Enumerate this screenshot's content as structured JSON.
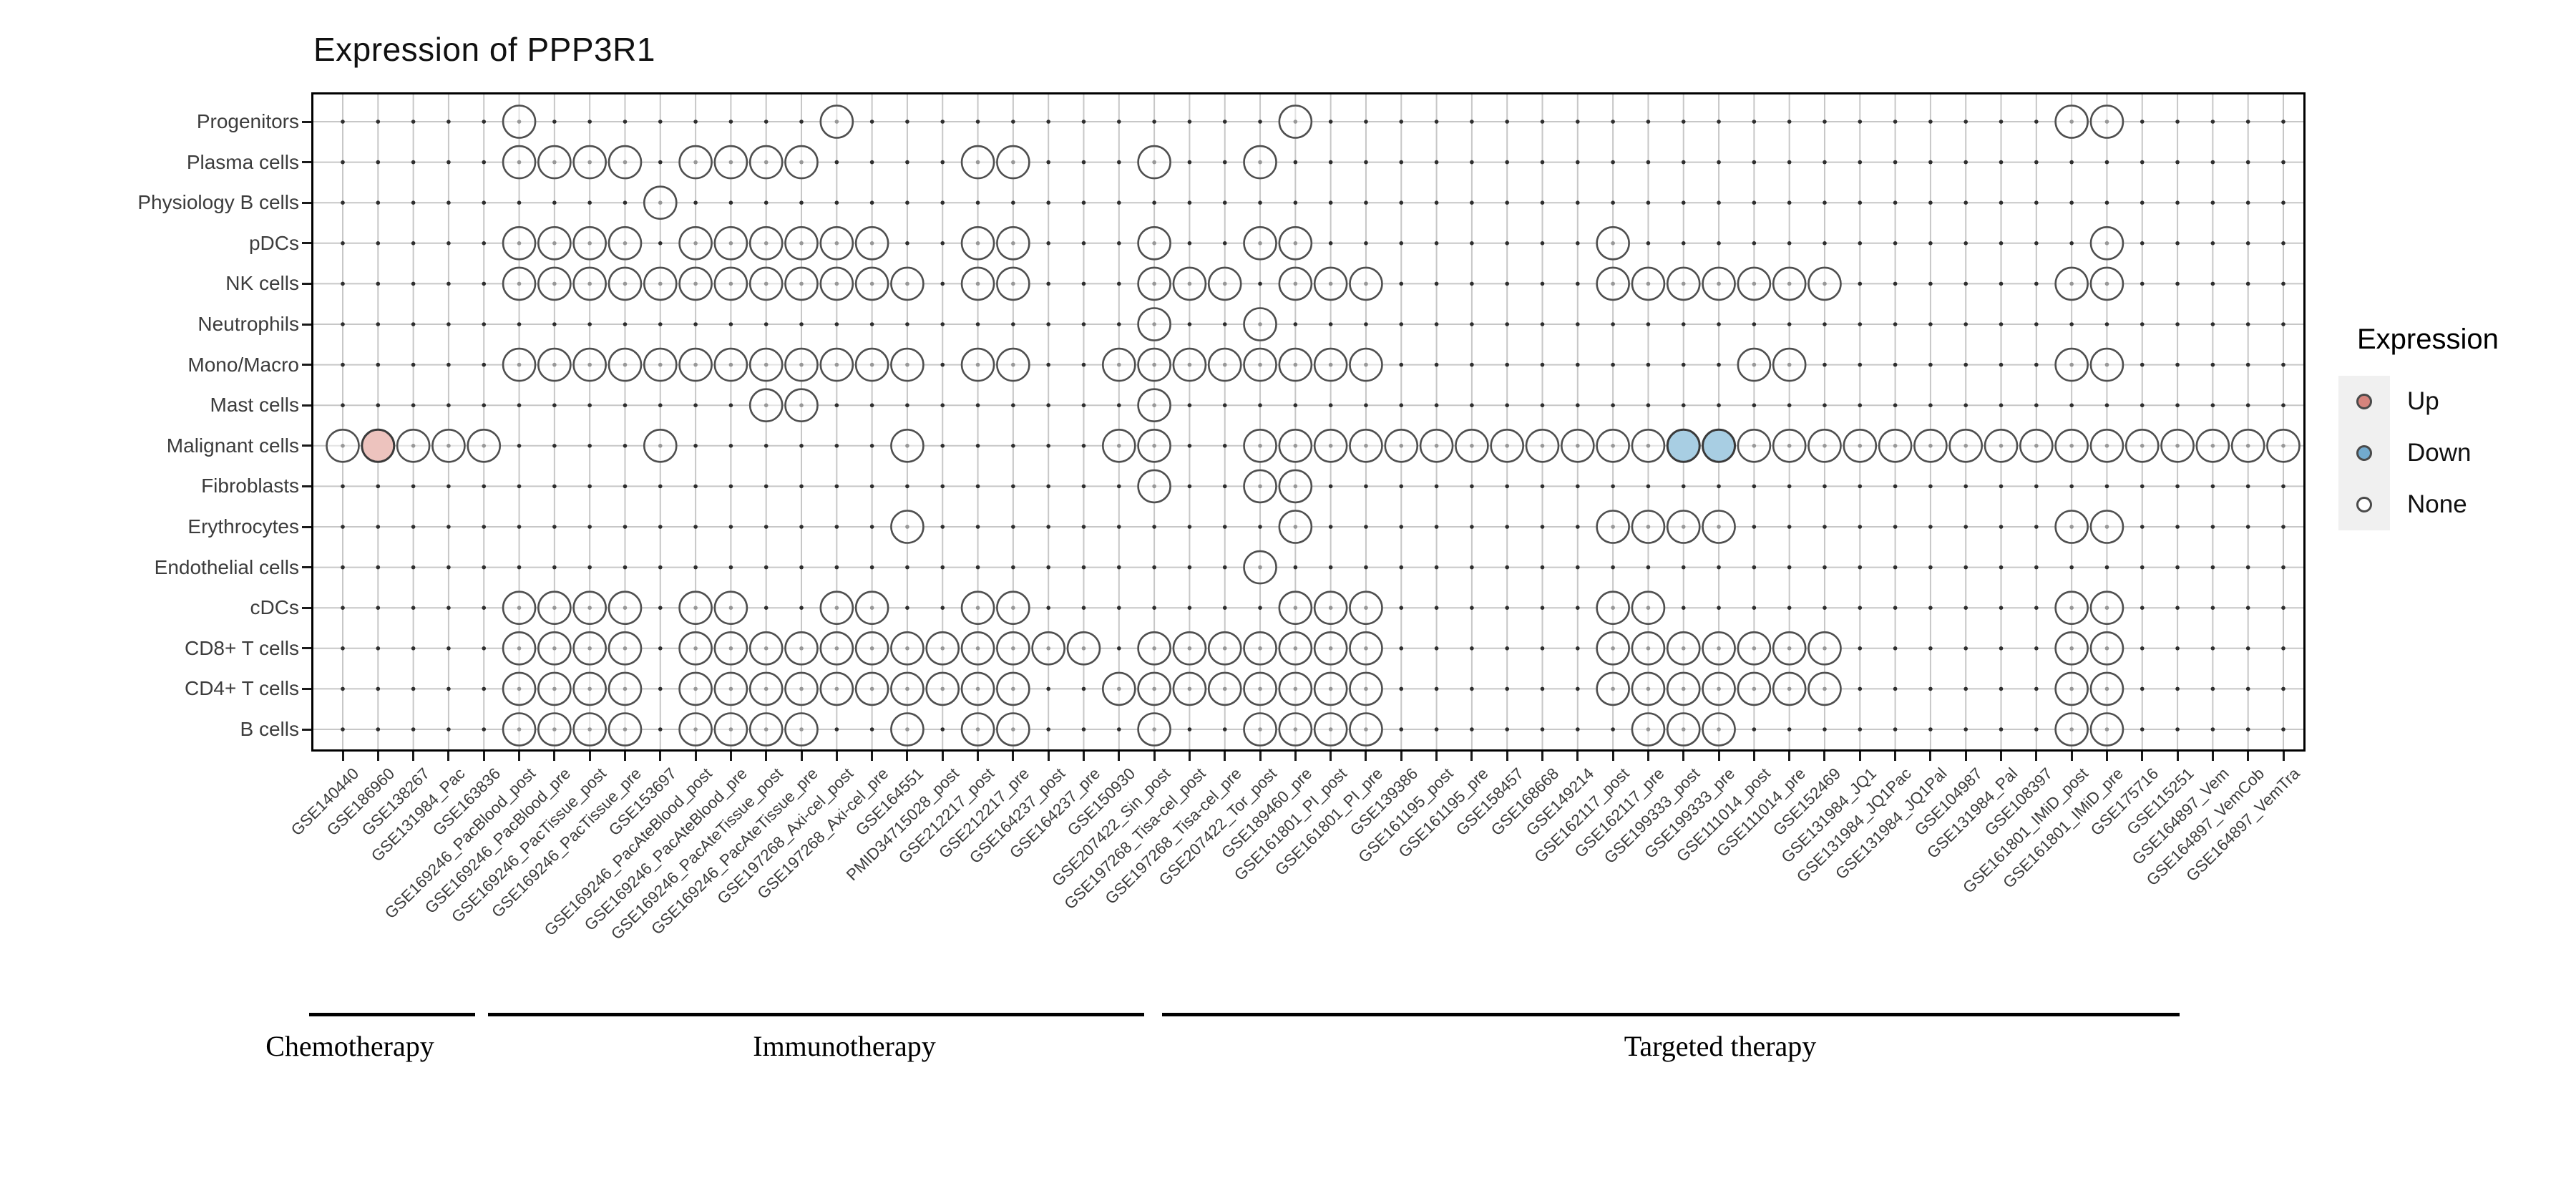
{
  "chart_data": {
    "type": "scatter",
    "title": "Expression of PPP3R1",
    "legend": {
      "title": "Expression",
      "items": [
        {
          "label": "Up",
          "color": "#D6847D"
        },
        {
          "label": "Down",
          "color": "#72AACE"
        },
        {
          "label": "None",
          "color": "#FFFFFF"
        }
      ]
    },
    "groups": [
      {
        "label": "Chemotherapy",
        "col_start": 1,
        "col_end": 5
      },
      {
        "label": "Immunotherapy",
        "col_start": 6,
        "col_end": 23
      },
      {
        "label": "Targeted therapy",
        "col_start": 24,
        "col_end": 52
      }
    ],
    "y_rows": [
      "Progenitors",
      "Plasma cells",
      "Physiology B cells",
      "pDCs",
      "NK cells",
      "Neutrophils",
      "Mono/Macro",
      "Mast cells",
      "Malignant cells",
      "Fibroblasts",
      "Erythrocytes",
      "Endothelial cells",
      "cDCs",
      "CD8+ T cells",
      "CD4+ T cells",
      "B cells"
    ],
    "x_columns": [
      "GSE140440",
      "GSE186960",
      "GSE138267",
      "GSE131984_Pac",
      "GSE163836",
      "GSE169246_PacBlood_post",
      "GSE169246_PacBlood_pre",
      "GSE169246_PacTissue_post",
      "GSE169246_PacTissue_pre",
      "GSE153697",
      "GSE169246_PacAteBlood_post",
      "GSE169246_PacAteBlood_pre",
      "GSE169246_PacAteTissue_post",
      "GSE169246_PacAteTissue_pre",
      "GSE197268_Axi-cel_post",
      "GSE197268_Axi-cel_pre",
      "GSE164551",
      "PMID34715028_post",
      "GSE212217_post",
      "GSE212217_pre",
      "GSE164237_post",
      "GSE164237_pre",
      "GSE150930",
      "GSE207422_Sin_post",
      "GSE197268_Tisa-cel_post",
      "GSE197268_Tisa-cel_pre",
      "GSE207422_Tor_post",
      "GSE189460_pre",
      "GSE161801_PI_post",
      "GSE161801_PI_pre",
      "GSE139386",
      "GSE161195_post",
      "GSE161195_pre",
      "GSE158457",
      "GSE168668",
      "GSE149214",
      "GSE162117_post",
      "GSE162117_pre",
      "GSE199333_post",
      "GSE199333_pre",
      "GSE111014_post",
      "GSE111014_pre",
      "GSE152469",
      "GSE131984_JQ1",
      "GSE131984_JQ1Pac",
      "GSE131984_JQ1Pal",
      "GSE104987",
      "GSE131984_Pal",
      "GSE108397",
      "GSE161801_IMiD_post",
      "GSE161801_IMiD_pre",
      "GSE175716",
      "GSE115251",
      "GSE164897_Vem",
      "GSE164897_VemCob",
      "GSE164897_VemTra"
    ],
    "cells": [
      {
        "row": "Progenitors",
        "none": [
          6,
          15,
          28,
          50,
          51
        ]
      },
      {
        "row": "Plasma cells",
        "none": [
          6,
          7,
          8,
          9,
          11,
          12,
          13,
          14,
          19,
          20,
          24,
          27
        ]
      },
      {
        "row": "Physiology B cells",
        "none": [
          10
        ]
      },
      {
        "row": "pDCs",
        "none": [
          6,
          7,
          8,
          9,
          11,
          12,
          13,
          14,
          15,
          16,
          19,
          20,
          24,
          27,
          28,
          37,
          51
        ]
      },
      {
        "row": "NK cells",
        "none": [
          6,
          7,
          8,
          9,
          10,
          11,
          12,
          13,
          14,
          15,
          16,
          17,
          19,
          20,
          24,
          25,
          26,
          28,
          29,
          30,
          37,
          38,
          39,
          40,
          41,
          42,
          43,
          50,
          51
        ]
      },
      {
        "row": "Neutrophils",
        "none": [
          24,
          27
        ]
      },
      {
        "row": "Mono/Macro",
        "none": [
          6,
          7,
          8,
          9,
          10,
          11,
          12,
          13,
          14,
          15,
          16,
          17,
          19,
          20,
          23,
          24,
          25,
          26,
          27,
          28,
          29,
          30,
          41,
          42,
          50,
          51
        ]
      },
      {
        "row": "Mast cells",
        "none": [
          13,
          14,
          24
        ]
      },
      {
        "row": "Malignant cells",
        "none": [
          1,
          3,
          4,
          5,
          10,
          17,
          23,
          24,
          27,
          28,
          29,
          30,
          31,
          32,
          33,
          34,
          35,
          36,
          37,
          38,
          41,
          42,
          43,
          44,
          45,
          46,
          47,
          48,
          49,
          50,
          51,
          52,
          53,
          54,
          55,
          56
        ],
        "up": [
          2
        ],
        "down": [
          39,
          40
        ]
      },
      {
        "row": "Fibroblasts",
        "none": [
          24,
          27,
          28
        ]
      },
      {
        "row": "Erythrocytes",
        "none": [
          17,
          28,
          37,
          38,
          39,
          40,
          50,
          51
        ]
      },
      {
        "row": "Endothelial cells",
        "none": [
          27
        ]
      },
      {
        "row": "cDCs",
        "none": [
          6,
          7,
          8,
          9,
          11,
          12,
          15,
          16,
          19,
          20,
          28,
          29,
          30,
          37,
          38,
          50,
          51
        ]
      },
      {
        "row": "CD8+ T cells",
        "none": [
          6,
          7,
          8,
          9,
          11,
          12,
          13,
          14,
          15,
          16,
          17,
          18,
          19,
          20,
          21,
          22,
          24,
          25,
          26,
          27,
          28,
          29,
          30,
          37,
          38,
          39,
          40,
          41,
          42,
          43,
          50,
          51
        ]
      },
      {
        "row": "CD4+ T cells",
        "none": [
          6,
          7,
          8,
          9,
          11,
          12,
          13,
          14,
          15,
          16,
          17,
          18,
          19,
          20,
          23,
          24,
          25,
          26,
          27,
          28,
          29,
          30,
          37,
          38,
          39,
          40,
          41,
          42,
          43,
          50,
          51
        ]
      },
      {
        "row": "B cells",
        "none": [
          6,
          7,
          8,
          9,
          11,
          12,
          13,
          14,
          17,
          19,
          20,
          24,
          27,
          28,
          29,
          30,
          38,
          39,
          40,
          50,
          51
        ]
      }
    ],
    "colors": {
      "up_fill": "#EDC3BE",
      "down_fill": "#A8CEE3",
      "none_fill": "rgba(255,255,255,0.5)",
      "circle_stroke": "#4F4F4F",
      "grid": "#C7C7C7",
      "intersection_dot": "#2E2E2E",
      "legend_key_bg": "#F0F0F0"
    }
  }
}
